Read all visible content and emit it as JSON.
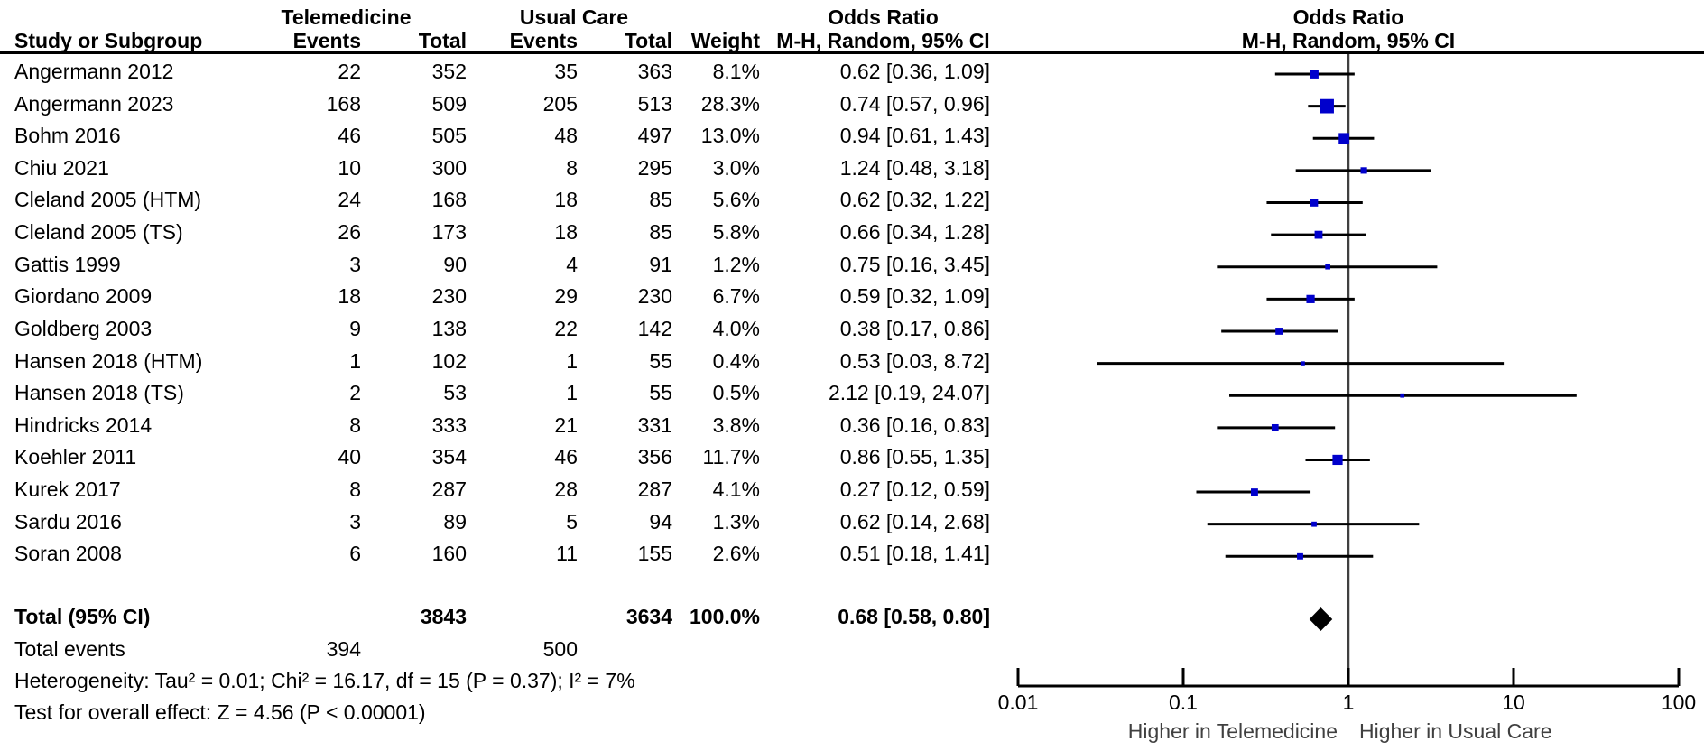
{
  "chart_data": {
    "type": "scatter",
    "subtype": "forest-plot-meta-analysis",
    "effect_measure": "Odds Ratio",
    "method_label": "M-H, Random, 95% CI",
    "x_axis": {
      "scale": "log",
      "ticks": [
        0.01,
        0.1,
        1,
        10,
        100
      ],
      "tick_labels": [
        "0.01",
        "0.1",
        "1",
        "10",
        "100"
      ],
      "left_direction_label": "Higher in Telemedicine",
      "right_direction_label": "Higher in Usual Care"
    },
    "studies": [
      {
        "name": "Angermann 2012",
        "tele_events": "22",
        "tele_total": "352",
        "uc_events": "35",
        "uc_total": "363",
        "weight": "8.1%",
        "weight_pct": 8.1,
        "or_text": "0.62 [0.36, 1.09]",
        "or": 0.62,
        "ci_low": 0.36,
        "ci_high": 1.09
      },
      {
        "name": "Angermann 2023",
        "tele_events": "168",
        "tele_total": "509",
        "uc_events": "205",
        "uc_total": "513",
        "weight": "28.3%",
        "weight_pct": 28.3,
        "or_text": "0.74 [0.57, 0.96]",
        "or": 0.74,
        "ci_low": 0.57,
        "ci_high": 0.96
      },
      {
        "name": "Bohm 2016",
        "tele_events": "46",
        "tele_total": "505",
        "uc_events": "48",
        "uc_total": "497",
        "weight": "13.0%",
        "weight_pct": 13.0,
        "or_text": "0.94 [0.61, 1.43]",
        "or": 0.94,
        "ci_low": 0.61,
        "ci_high": 1.43
      },
      {
        "name": "Chiu 2021",
        "tele_events": "10",
        "tele_total": "300",
        "uc_events": "8",
        "uc_total": "295",
        "weight": "3.0%",
        "weight_pct": 3.0,
        "or_text": "1.24 [0.48, 3.18]",
        "or": 1.24,
        "ci_low": 0.48,
        "ci_high": 3.18
      },
      {
        "name": "Cleland 2005 (HTM)",
        "tele_events": "24",
        "tele_total": "168",
        "uc_events": "18",
        "uc_total": "85",
        "weight": "5.6%",
        "weight_pct": 5.6,
        "or_text": "0.62 [0.32, 1.22]",
        "or": 0.62,
        "ci_low": 0.32,
        "ci_high": 1.22
      },
      {
        "name": "Cleland 2005 (TS)",
        "tele_events": "26",
        "tele_total": "173",
        "uc_events": "18",
        "uc_total": "85",
        "weight": "5.8%",
        "weight_pct": 5.8,
        "or_text": "0.66 [0.34, 1.28]",
        "or": 0.66,
        "ci_low": 0.34,
        "ci_high": 1.28
      },
      {
        "name": "Gattis 1999",
        "tele_events": "3",
        "tele_total": "90",
        "uc_events": "4",
        "uc_total": "91",
        "weight": "1.2%",
        "weight_pct": 1.2,
        "or_text": "0.75 [0.16, 3.45]",
        "or": 0.75,
        "ci_low": 0.16,
        "ci_high": 3.45
      },
      {
        "name": "Giordano 2009",
        "tele_events": "18",
        "tele_total": "230",
        "uc_events": "29",
        "uc_total": "230",
        "weight": "6.7%",
        "weight_pct": 6.7,
        "or_text": "0.59 [0.32, 1.09]",
        "or": 0.59,
        "ci_low": 0.32,
        "ci_high": 1.09
      },
      {
        "name": "Goldberg 2003",
        "tele_events": "9",
        "tele_total": "138",
        "uc_events": "22",
        "uc_total": "142",
        "weight": "4.0%",
        "weight_pct": 4.0,
        "or_text": "0.38 [0.17, 0.86]",
        "or": 0.38,
        "ci_low": 0.17,
        "ci_high": 0.86
      },
      {
        "name": "Hansen 2018 (HTM)",
        "tele_events": "1",
        "tele_total": "102",
        "uc_events": "1",
        "uc_total": "55",
        "weight": "0.4%",
        "weight_pct": 0.4,
        "or_text": "0.53 [0.03, 8.72]",
        "or": 0.53,
        "ci_low": 0.03,
        "ci_high": 8.72
      },
      {
        "name": "Hansen 2018 (TS)",
        "tele_events": "2",
        "tele_total": "53",
        "uc_events": "1",
        "uc_total": "55",
        "weight": "0.5%",
        "weight_pct": 0.5,
        "or_text": "2.12 [0.19, 24.07]",
        "or": 2.12,
        "ci_low": 0.19,
        "ci_high": 24.07
      },
      {
        "name": "Hindricks 2014",
        "tele_events": "8",
        "tele_total": "333",
        "uc_events": "21",
        "uc_total": "331",
        "weight": "3.8%",
        "weight_pct": 3.8,
        "or_text": "0.36 [0.16, 0.83]",
        "or": 0.36,
        "ci_low": 0.16,
        "ci_high": 0.83
      },
      {
        "name": "Koehler 2011",
        "tele_events": "40",
        "tele_total": "354",
        "uc_events": "46",
        "uc_total": "356",
        "weight": "11.7%",
        "weight_pct": 11.7,
        "or_text": "0.86 [0.55, 1.35]",
        "or": 0.86,
        "ci_low": 0.55,
        "ci_high": 1.35
      },
      {
        "name": "Kurek 2017",
        "tele_events": "8",
        "tele_total": "287",
        "uc_events": "28",
        "uc_total": "287",
        "weight": "4.1%",
        "weight_pct": 4.1,
        "or_text": "0.27 [0.12, 0.59]",
        "or": 0.27,
        "ci_low": 0.12,
        "ci_high": 0.59
      },
      {
        "name": "Sardu 2016",
        "tele_events": "3",
        "tele_total": "89",
        "uc_events": "5",
        "uc_total": "94",
        "weight": "1.3%",
        "weight_pct": 1.3,
        "or_text": "0.62 [0.14, 2.68]",
        "or": 0.62,
        "ci_low": 0.14,
        "ci_high": 2.68
      },
      {
        "name": "Soran 2008",
        "tele_events": "6",
        "tele_total": "160",
        "uc_events": "11",
        "uc_total": "155",
        "weight": "2.6%",
        "weight_pct": 2.6,
        "or_text": "0.51 [0.18, 1.41]",
        "or": 0.51,
        "ci_low": 0.18,
        "ci_high": 1.41
      }
    ],
    "total": {
      "label": "Total (95% CI)",
      "tele_total": "3843",
      "uc_total": "3634",
      "weight": "100.0%",
      "or_text": "0.68 [0.58, 0.80]",
      "or": 0.68,
      "ci_low": 0.58,
      "ci_high": 0.8
    },
    "total_events": {
      "label": "Total events",
      "tele_events": "394",
      "uc_events": "500"
    }
  },
  "headers": {
    "group_tele": "Telemedicine",
    "group_uc": "Usual Care",
    "odds_ratio_left": "Odds Ratio",
    "odds_ratio_right": "Odds Ratio",
    "study": "Study or Subgroup",
    "events": "Events",
    "total": "Total",
    "events2": "Events",
    "total2": "Total",
    "weight": "Weight",
    "mh_left": "M-H, Random, 95% CI",
    "mh_right": "M-H, Random, 95% CI"
  },
  "footer": {
    "heterogeneity": "Heterogeneity: Tau² = 0.01; Chi² = 16.17, df = 15 (P = 0.37); I² = 7%",
    "overall_effect": "Test for overall effect: Z = 4.56 (P < 0.00001)"
  },
  "colors": {
    "marker_blue": "#0000CC",
    "diamond_black": "#000000",
    "ci_line": "#000000",
    "center_line": "#404040",
    "axis": "#000000"
  }
}
